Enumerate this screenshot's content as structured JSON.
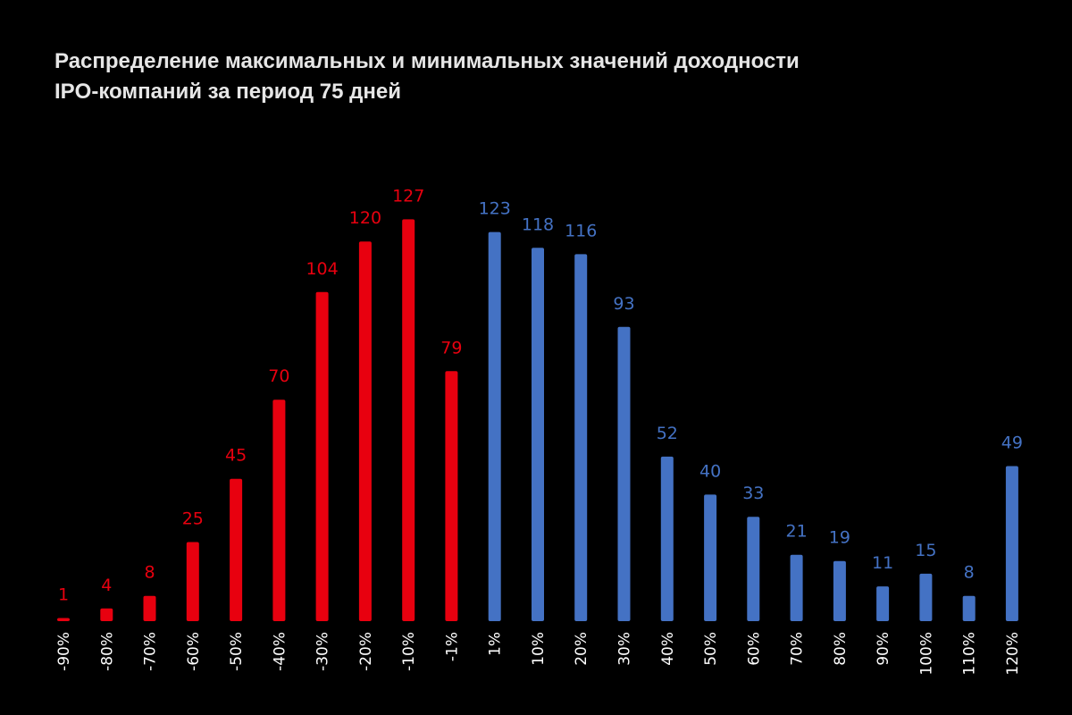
{
  "title_line1": "Распределение максимальных и минимальных значений доходности",
  "title_line2": "IPO-компаний за период 75 дней",
  "colors": {
    "background": "#000000",
    "negative": "#e8000f",
    "positive": "#4472c4",
    "title": "#e6e6e6",
    "ticks": "#ffffff"
  },
  "chart_data": {
    "type": "bar",
    "title": "Распределение максимальных и минимальных значений доходности IPO-компаний за период 75 дней",
    "xlabel": "",
    "ylabel": "",
    "ylim": [
      0,
      130
    ],
    "grid": false,
    "legend": "none",
    "categories": [
      "-90%",
      "-80%",
      "-70%",
      "-60%",
      "-50%",
      "-40%",
      "-30%",
      "-20%",
      "-10%",
      "-1%",
      "1%",
      "10%",
      "20%",
      "30%",
      "40%",
      "50%",
      "60%",
      "70%",
      "80%",
      "90%",
      "100%",
      "110%",
      "120%"
    ],
    "values": [
      1,
      4,
      8,
      25,
      45,
      70,
      104,
      120,
      127,
      79,
      123,
      118,
      116,
      93,
      52,
      40,
      33,
      21,
      19,
      11,
      15,
      8,
      49
    ],
    "bar_colors": [
      "negative",
      "negative",
      "negative",
      "negative",
      "negative",
      "negative",
      "negative",
      "negative",
      "negative",
      "negative",
      "positive",
      "positive",
      "positive",
      "positive",
      "positive",
      "positive",
      "positive",
      "positive",
      "positive",
      "positive",
      "positive",
      "positive",
      "positive"
    ]
  }
}
